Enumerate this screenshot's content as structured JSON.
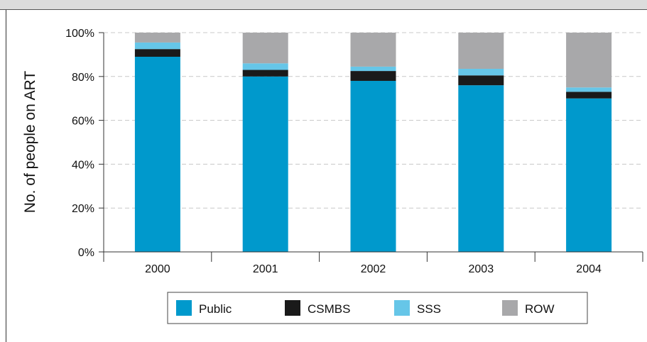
{
  "chart_data": {
    "type": "bar",
    "stacked": true,
    "categories": [
      "2000",
      "2001",
      "2002",
      "2003",
      "2004"
    ],
    "series": [
      {
        "name": "Public",
        "color": "#0099cc",
        "values": [
          89,
          80,
          78,
          76,
          70
        ]
      },
      {
        "name": "CSMBS",
        "color": "#1a1a1a",
        "values": [
          3.5,
          3,
          4.5,
          4.5,
          3
        ]
      },
      {
        "name": "SSS",
        "color": "#66c6e8",
        "values": [
          3,
          3,
          2,
          3,
          2
        ]
      },
      {
        "name": "ROW",
        "color": "#a8a8aa",
        "values": [
          4.5,
          14,
          15.5,
          16.5,
          25
        ]
      }
    ],
    "ylabel": "No. of people on ART",
    "xlabel": "",
    "ylim": [
      0,
      100
    ],
    "yticks": [
      "0%",
      "20%",
      "40%",
      "60%",
      "80%",
      "100%"
    ],
    "grid": true,
    "legend_position": "bottom"
  }
}
